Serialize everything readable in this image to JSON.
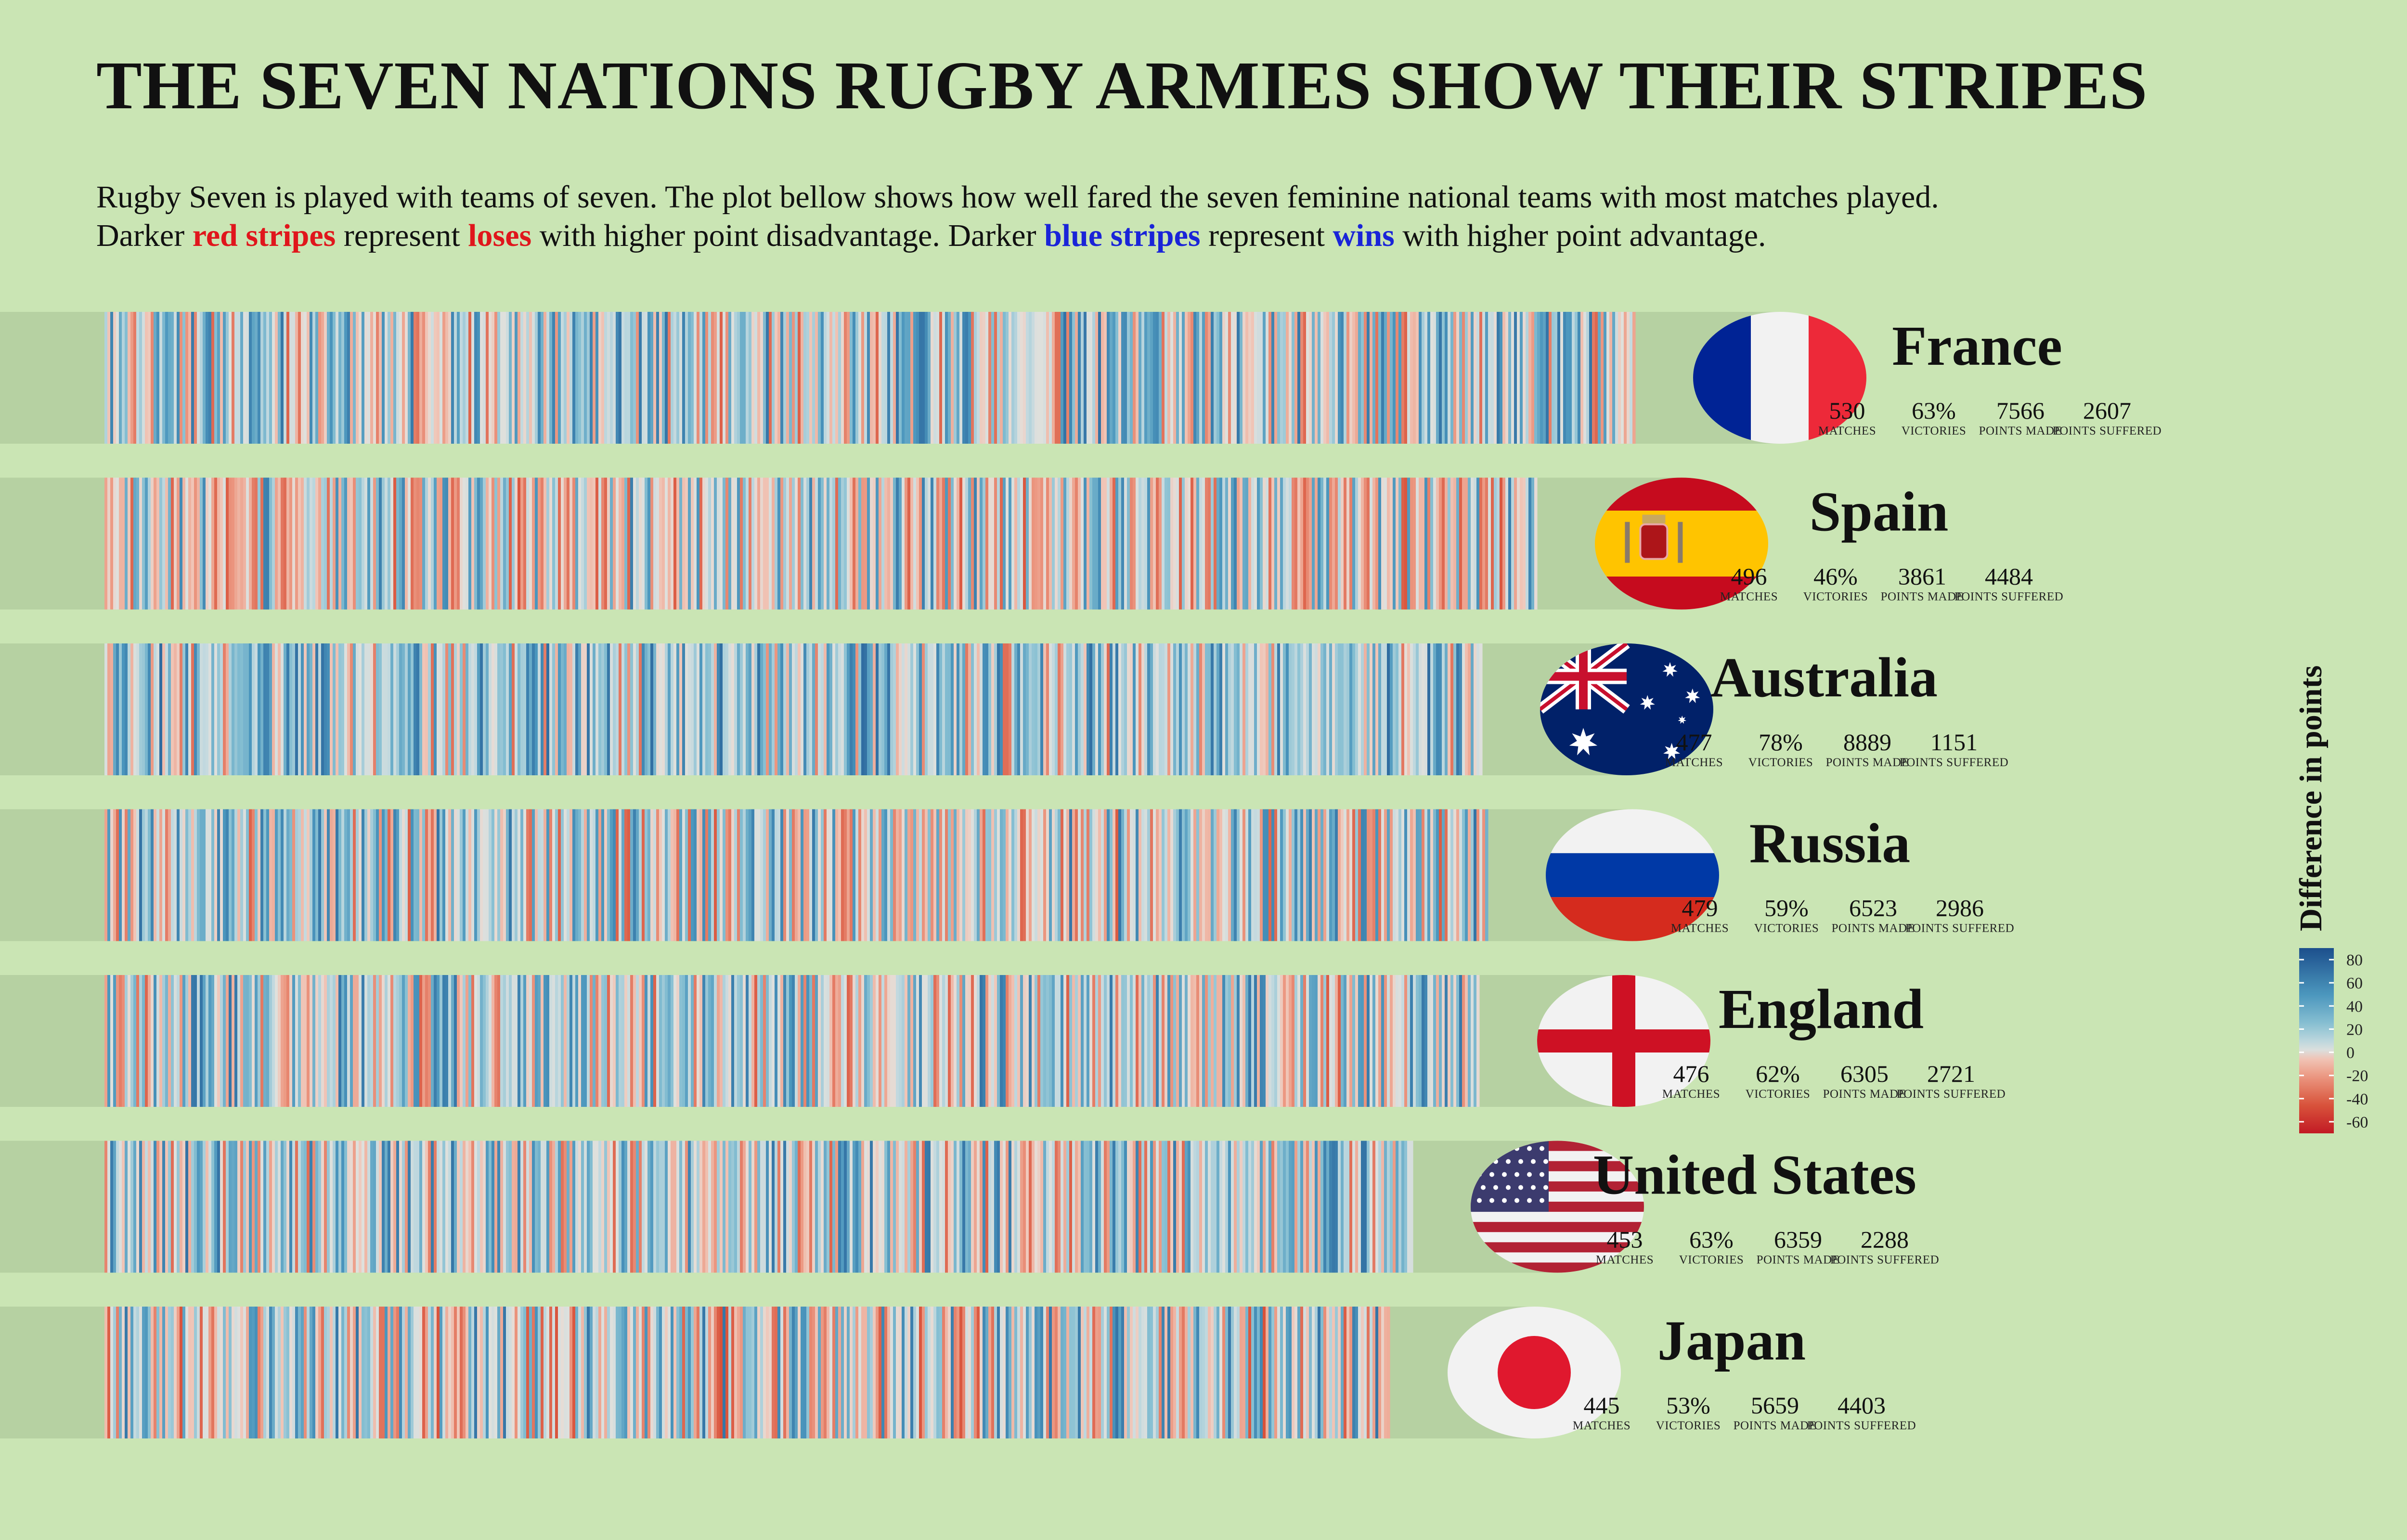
{
  "title": "THE SEVEN NATIONS RUGBY ARMIES SHOW THEIR STRIPES",
  "subtitle": {
    "line1": "Rugby Seven is played with teams of seven. The plot bellow shows how well fared the seven feminine national teams with most matches played.",
    "line2_parts": [
      {
        "text": "Darker ",
        "style": "plain"
      },
      {
        "text": "red stripes",
        "style": "red"
      },
      {
        "text": " represent ",
        "style": "plain"
      },
      {
        "text": "loses",
        "style": "red"
      },
      {
        "text": " with higher point disadvantage. Darker ",
        "style": "plain"
      },
      {
        "text": "blue stripes",
        "style": "blue"
      },
      {
        "text": " represent ",
        "style": "plain"
      },
      {
        "text": "wins",
        "style": "blue"
      },
      {
        "text": " with higher point advantage.",
        "style": "plain"
      }
    ]
  },
  "stat_labels": {
    "matches": "MATCHES",
    "victories": "VICTORIES",
    "points_made": "POINTS MADE",
    "points_suffered": "POINTS SUFFERED"
  },
  "colors": {
    "background": "#cae5b4",
    "track": "#b6d1a2",
    "deep_red": "#b2182b",
    "neutral": "#e3e3df",
    "deep_blue": "#1a4f8a",
    "highlight_red": "#e0161c",
    "highlight_blue": "#1a24d8"
  },
  "chart_data": {
    "type": "heatmap",
    "description_of_encoding": "one stripe per match, colored by point difference",
    "legend": {
      "title": "Difference in points",
      "ticks": [
        80,
        60,
        40,
        20,
        0,
        -20,
        -40,
        -60
      ],
      "range": [
        -70,
        90
      ]
    },
    "teams": [
      {
        "name": "France",
        "flag": "france",
        "matches": 530,
        "victories": "63%",
        "victory_rate": 0.63,
        "points_made": 7566,
        "points_suffered": 2607
      },
      {
        "name": "Spain",
        "flag": "spain",
        "matches": 496,
        "victories": "46%",
        "victory_rate": 0.46,
        "points_made": 3861,
        "points_suffered": 4484
      },
      {
        "name": "Australia",
        "flag": "australia",
        "matches": 477,
        "victories": "78%",
        "victory_rate": 0.78,
        "points_made": 8889,
        "points_suffered": 1151
      },
      {
        "name": "Russia",
        "flag": "russia",
        "matches": 479,
        "victories": "59%",
        "victory_rate": 0.59,
        "points_made": 6523,
        "points_suffered": 2986
      },
      {
        "name": "England",
        "flag": "england",
        "matches": 476,
        "victories": "62%",
        "victory_rate": 0.62,
        "points_made": 6305,
        "points_suffered": 2721
      },
      {
        "name": "United States",
        "flag": "usa",
        "matches": 453,
        "victories": "63%",
        "victory_rate": 0.63,
        "points_made": 6359,
        "points_suffered": 2288
      },
      {
        "name": "Japan",
        "flag": "japan",
        "matches": 445,
        "victories": "53%",
        "victory_rate": 0.53,
        "points_made": 5659,
        "points_suffered": 4403
      }
    ]
  }
}
